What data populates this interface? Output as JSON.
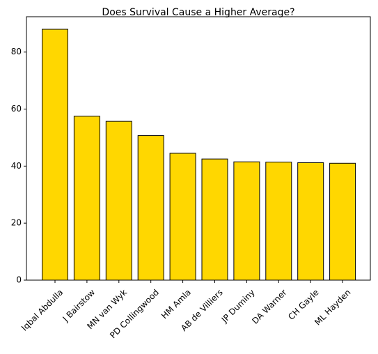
{
  "chart_data": {
    "type": "bar",
    "title": "Does Survival Cause a Higher Average?",
    "categories": [
      "Iqbal Abdulla",
      "J Bairstow",
      "MN van Wyk",
      "PD Collingwood",
      "HM Amla",
      "AB de Villiers",
      "JP Duminy",
      "DA Warner",
      "CH Gayle",
      "ML Hayden"
    ],
    "values": [
      88,
      57.5,
      55.7,
      50.7,
      44.5,
      42.5,
      41.5,
      41.4,
      41.2,
      41
    ],
    "color": "#ffd700",
    "edgecolor": "#000000",
    "ylim": [
      0,
      92.4
    ],
    "yticks": [
      0,
      20,
      40,
      60,
      80
    ],
    "grid": false
  }
}
